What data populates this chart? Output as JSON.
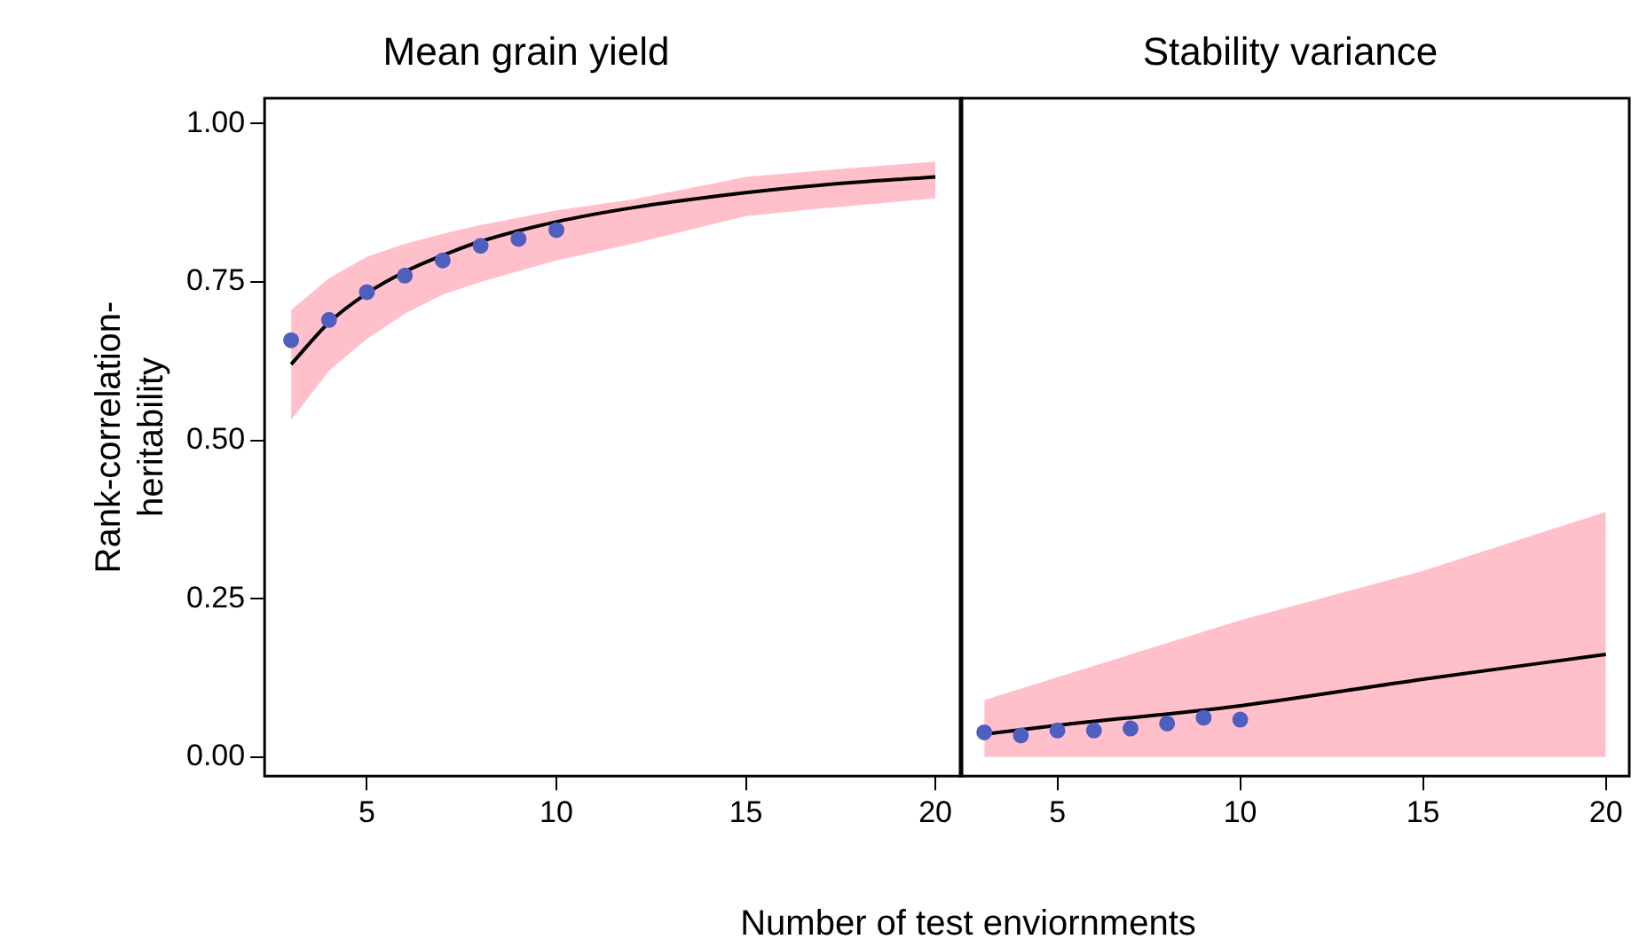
{
  "chart_data": [
    {
      "type": "line",
      "title": "Mean grain yield",
      "ylabel": "Rank-correlation-heritability",
      "xlabel": "Number of test enviornments",
      "xlim": [
        2.3,
        20.7
      ],
      "xticks": [
        5,
        10,
        15,
        20
      ],
      "ylim": [
        -0.03,
        1.04
      ],
      "yticks": [
        {
          "value": 0,
          "label": "0.00"
        },
        {
          "value": 0.25,
          "label": "0.25"
        },
        {
          "value": 0.5,
          "label": "0.50"
        },
        {
          "value": 0.75,
          "label": "0.75"
        },
        {
          "value": 1,
          "label": "1.00"
        }
      ],
      "grid": false,
      "legend": false,
      "series": [
        {
          "color": "#000000",
          "x": [
            3,
            4,
            5,
            6,
            7,
            8,
            10,
            12,
            15,
            17,
            20
          ],
          "values": [
            0.62,
            0.686,
            0.732,
            0.766,
            0.792,
            0.814,
            0.845,
            0.867,
            0.891,
            0.903,
            0.916
          ],
          "lower": [
            0.532,
            0.61,
            0.66,
            0.7,
            0.73,
            0.75,
            0.784,
            0.81,
            0.854,
            0.866,
            0.882
          ],
          "upper": [
            0.706,
            0.756,
            0.79,
            0.81,
            0.826,
            0.84,
            0.863,
            0.88,
            0.916,
            0.926,
            0.94
          ]
        },
        {
          "type": "scatter",
          "color": "#4f5fbf",
          "x": [
            3,
            4,
            5,
            6,
            7,
            8,
            9,
            10
          ],
          "values": [
            0.658,
            0.69,
            0.734,
            0.76,
            0.784,
            0.807,
            0.818,
            0.832
          ]
        }
      ]
    },
    {
      "type": "line",
      "title": "Stability variance",
      "xlim": [
        2.34,
        20.64
      ],
      "xticks": [
        5,
        10,
        15,
        20
      ],
      "ylim": [
        -0.03,
        1.04
      ],
      "tick_labels": "x",
      "grid": false,
      "legend": false,
      "series": [
        {
          "color": "#000000",
          "x": [
            3,
            5,
            10,
            15,
            20
          ],
          "values": [
            0.036,
            0.05,
            0.081,
            0.123,
            0.162
          ],
          "lower": [
            0,
            0,
            0,
            0,
            0
          ],
          "upper": [
            0.09,
            0.126,
            0.216,
            0.294,
            0.387
          ]
        },
        {
          "type": "scatter",
          "color": "#4f5fbf",
          "x": [
            3,
            4,
            5,
            6,
            7,
            8,
            9,
            10
          ],
          "values": [
            0.039,
            0.034,
            0.042,
            0.042,
            0.045,
            0.053,
            0.062,
            0.059
          ]
        }
      ]
    }
  ]
}
